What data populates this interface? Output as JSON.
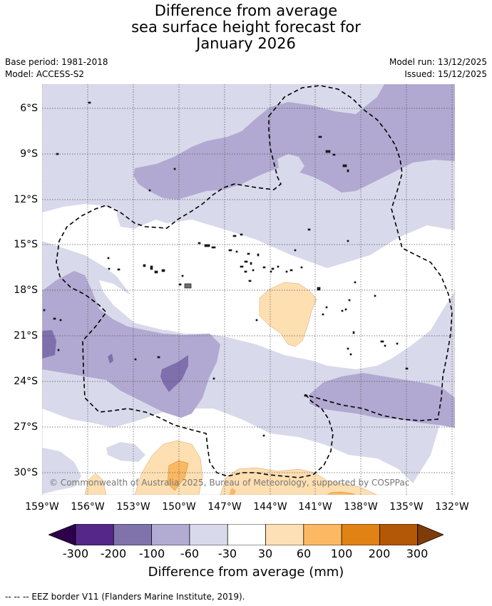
{
  "title": {
    "line1": "Difference from average",
    "line2": "sea surface height forecast for",
    "line3": "January 2026"
  },
  "meta": {
    "base_period": "Base period: 1981-2018",
    "model": "Model: ACCESS-S2",
    "model_run": "Model run: 13/12/2025",
    "issued": "Issued: 15/12/2025"
  },
  "map": {
    "lat_labels": [
      "6°S",
      "9°S",
      "12°S",
      "15°S",
      "18°S",
      "21°S",
      "24°S",
      "27°S",
      "30°S"
    ],
    "lon_labels": [
      "159°W",
      "156°W",
      "153°W",
      "150°W",
      "147°W",
      "144°W",
      "141°W",
      "138°W",
      "135°W",
      "132°W"
    ],
    "copyright": "© Commonwealth of Australia 2025, Bureau of Meteorology, supported by COSPPac",
    "colors": {
      "c_m200_m100": "#7f6fad",
      "c_m100_m60": "#b1a9d1",
      "c_m60_m30": "#d8d9ea",
      "c_30_60": "#fedfb2",
      "c_60_100": "#fbb863",
      "c_100_200": "#e08214"
    }
  },
  "colorbar": {
    "ticks": [
      "-300",
      "-200",
      "-100",
      "-60",
      "-30",
      "30",
      "60",
      "100",
      "200",
      "300"
    ],
    "colors": [
      "#2d004b",
      "#542788",
      "#8073ac",
      "#b2abd2",
      "#d8daeb",
      "#ffffff",
      "#fee0b6",
      "#fdb863",
      "#e08214",
      "#b35806",
      "#7f3b08"
    ],
    "title": "Difference from average (mm)"
  },
  "footer": {
    "legend": "--  --  -- EEZ border V11 (Flanders Marine Institute, 2019)."
  }
}
